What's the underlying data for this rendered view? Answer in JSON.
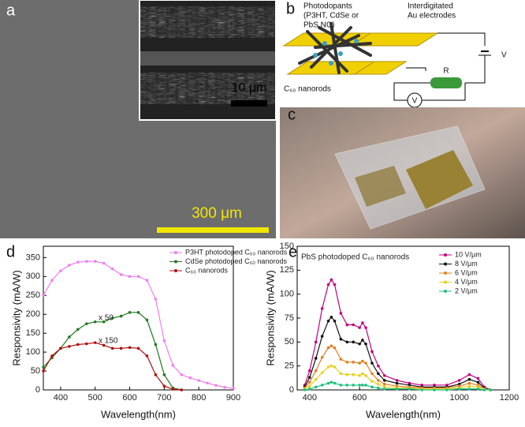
{
  "panels": {
    "a": {
      "label": "a",
      "inset_scale": "10 μm",
      "scale": "300 μm"
    },
    "b": {
      "label": "b",
      "photodopants": [
        "Photodopants",
        "(P3HT, CdSe or",
        "PbS NC)"
      ],
      "electrodes": [
        "Interdigitated",
        "Au electrodes"
      ],
      "nanorods": "C₆₀ nanorods",
      "resistor": "R",
      "voltage": "V",
      "meter": "V"
    },
    "c": {
      "label": "c"
    }
  },
  "chart_data": [
    {
      "type": "line",
      "panel_label": "d",
      "xlabel": "Wavelength(nm)",
      "ylabel": "Responsivity (mA/W)",
      "annotations": [
        "x 50",
        "x 150"
      ],
      "legend": "upper right",
      "x": [
        350,
        375,
        400,
        425,
        450,
        475,
        500,
        525,
        550,
        575,
        600,
        625,
        650,
        675,
        700,
        725,
        750,
        775,
        800,
        825,
        850,
        875,
        900
      ],
      "series": [
        {
          "name": "P3HT photodoped C₆₀ nanorods",
          "color": "#f07ef0",
          "values": [
            250,
            290,
            315,
            330,
            338,
            340,
            340,
            335,
            320,
            305,
            300,
            300,
            290,
            240,
            130,
            65,
            40,
            32,
            25,
            18,
            12,
            7,
            4
          ]
        },
        {
          "name": "CdSe photodoped C₆₀ nanorods",
          "color": "#1f7a1f",
          "values": [
            60,
            85,
            110,
            140,
            160,
            175,
            180,
            180,
            190,
            195,
            205,
            205,
            185,
            120,
            40,
            5,
            0,
            null,
            null,
            null,
            null,
            null,
            null
          ]
        },
        {
          "name": "C₆₀ nanorods",
          "color": "#b01010",
          "values": [
            50,
            90,
            110,
            115,
            120,
            122,
            125,
            118,
            110,
            110,
            112,
            110,
            90,
            40,
            10,
            2,
            0,
            null,
            null,
            null,
            null,
            null,
            null
          ]
        }
      ],
      "xlim": [
        350,
        900
      ],
      "xticks": [
        400,
        500,
        600,
        700,
        800,
        900
      ],
      "ylim": [
        0,
        380
      ],
      "yticks": [
        0,
        50,
        100,
        150,
        200,
        250,
        300,
        350
      ]
    },
    {
      "type": "line",
      "panel_label": "e",
      "xlabel": "Wavelength(nm)",
      "ylabel": "Responsivity (mA/W)",
      "annotations": [
        "PbS photodoped C₆₀ nanorods"
      ],
      "legend": "upper right",
      "x": [
        380,
        400,
        425,
        450,
        475,
        487,
        500,
        525,
        550,
        575,
        600,
        612,
        625,
        650,
        675,
        700,
        750,
        800,
        850,
        900,
        950,
        1000,
        1040,
        1075,
        1100,
        1125
      ],
      "series": [
        {
          "name": "10 V/μm",
          "color": "#c0007f",
          "values": [
            5,
            20,
            50,
            85,
            110,
            115,
            110,
            80,
            68,
            68,
            65,
            70,
            65,
            40,
            25,
            15,
            10,
            7,
            5,
            5,
            5,
            10,
            16,
            12,
            3,
            0
          ]
        },
        {
          "name": "8 V/μm",
          "color": "#111111",
          "values": [
            3,
            13,
            33,
            56,
            72,
            76,
            72,
            53,
            50,
            50,
            48,
            52,
            48,
            28,
            17,
            10,
            7,
            5,
            3,
            3,
            3,
            6,
            11,
            8,
            2,
            0
          ]
        },
        {
          "name": "6 V/μm",
          "color": "#e08020",
          "values": [
            2,
            8,
            20,
            34,
            44,
            46,
            44,
            32,
            29,
            29,
            28,
            30,
            28,
            17,
            10,
            6,
            4,
            3,
            2,
            2,
            2,
            4,
            7,
            5,
            1,
            0
          ]
        },
        {
          "name": "4 V/μm",
          "color": "#e8d020",
          "values": [
            1,
            4,
            11,
            18,
            24,
            25,
            24,
            17,
            16,
            16,
            15,
            17,
            15,
            9,
            6,
            3,
            2,
            2,
            1,
            1,
            1,
            2,
            4,
            3,
            1,
            0
          ]
        },
        {
          "name": "2 V/μm",
          "color": "#20c080",
          "values": [
            0,
            1,
            3,
            5,
            7,
            8,
            7,
            5,
            5,
            5,
            5,
            5,
            5,
            3,
            2,
            1,
            1,
            1,
            0,
            0,
            0,
            1,
            1,
            1,
            0,
            0
          ]
        }
      ],
      "xlim": [
        350,
        1200
      ],
      "xticks": [
        400,
        600,
        800,
        1000,
        1200
      ],
      "ylim": [
        0,
        150
      ],
      "yticks": [
        0,
        25,
        50,
        75,
        100,
        125,
        150
      ]
    }
  ]
}
